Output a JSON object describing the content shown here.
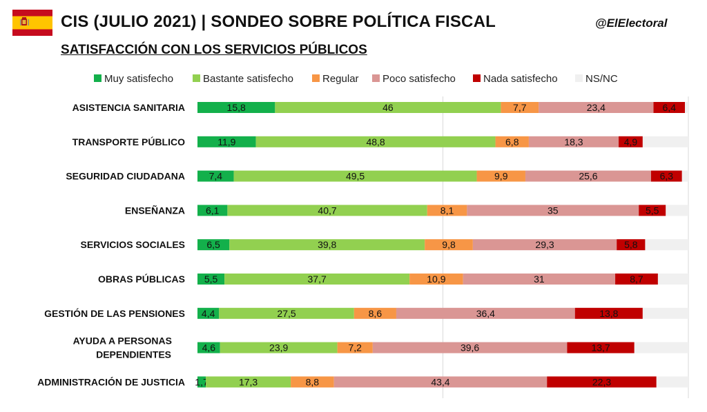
{
  "header": {
    "title": "CIS (JULIO 2021) | SONDEO SOBRE POLÍTICA FISCAL",
    "handle": "@ElElectoral",
    "subtitle": "SATISFACCIÓN CON LOS SERVICIOS PÚBLICOS"
  },
  "flag": {
    "icon": "spain-flag-icon",
    "colors": {
      "red": "#c60b1e",
      "yellow": "#ffc400"
    }
  },
  "chart_data": {
    "type": "bar",
    "orientation": "horizontal",
    "stacked": true,
    "title": "SATISFACCIÓN CON LOS SERVICIOS PÚBLICOS",
    "xlim": [
      0,
      100
    ],
    "legend_position": "top",
    "categories": [
      "ASISTENCIA SANITARIA",
      "TRANSPORTE PÚBLICO",
      "SEGURIDAD CIUDADANA",
      "ENSEÑANZA",
      "SERVICIOS SOCIALES",
      "OBRAS PÚBLICAS",
      "GESTIÓN DE LAS PENSIONES",
      "AYUDA A PERSONAS DEPENDIENTES",
      "ADMINISTRACIÓN DE JUSTICIA"
    ],
    "series": [
      {
        "name": "Muy satisfecho",
        "color": "#13b04b",
        "values": [
          15.8,
          11.9,
          7.4,
          6.1,
          6.5,
          5.5,
          4.4,
          4.6,
          1.7
        ]
      },
      {
        "name": "Bastante satisfecho",
        "color": "#92d050",
        "values": [
          46,
          48.8,
          49.5,
          40.7,
          39.8,
          37.7,
          27.5,
          23.9,
          17.3
        ]
      },
      {
        "name": "Regular",
        "color": "#f79646",
        "values": [
          7.7,
          6.8,
          9.9,
          8.1,
          9.8,
          10.9,
          8.6,
          7.2,
          8.8
        ]
      },
      {
        "name": "Poco satisfecho",
        "color": "#da9694",
        "values": [
          23.4,
          18.3,
          25.6,
          35,
          29.3,
          31,
          36.4,
          39.6,
          43.4
        ]
      },
      {
        "name": "Nada satisfecho",
        "color": "#c00000",
        "values": [
          6.4,
          4.9,
          6.3,
          5.5,
          5.8,
          8.7,
          13.8,
          13.7,
          22.3
        ]
      },
      {
        "name": "NS/NC",
        "color": "#f0f0f0",
        "values": [
          0.7,
          9.3,
          1.3,
          4.6,
          8.8,
          6.2,
          9.3,
          11.0,
          6.5
        ]
      }
    ],
    "value_labels_shown_for": [
      "Muy satisfecho",
      "Bastante satisfecho",
      "Regular",
      "Poco satisfecho",
      "Nada satisfecho"
    ],
    "gridlines": [
      50,
      100
    ]
  }
}
